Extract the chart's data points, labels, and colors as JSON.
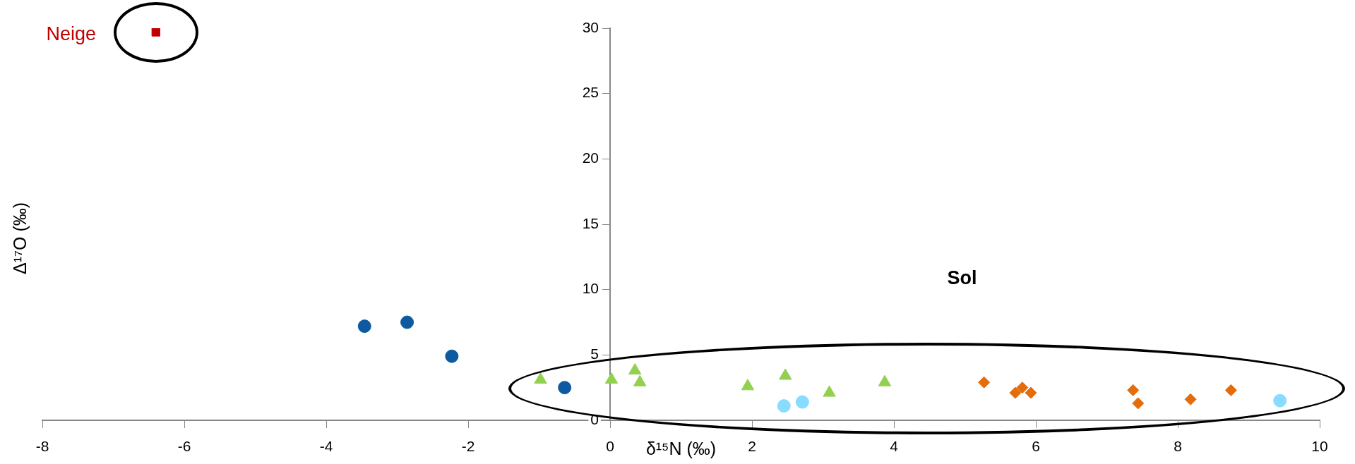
{
  "chart_data": {
    "type": "scatter",
    "xlabel": "δ¹⁵N (‰)",
    "ylabel": "Δ¹⁷O (‰)",
    "xlim": [
      -8,
      10
    ],
    "xticks": [
      -8,
      -6,
      -4,
      -2,
      0,
      2,
      4,
      6,
      8,
      10
    ],
    "ylim": [
      0,
      30
    ],
    "yticks": [
      0,
      5,
      10,
      15,
      20,
      25,
      30
    ],
    "annotations": [
      "Neige",
      "Sol"
    ],
    "series": [
      {
        "color": "#c00000",
        "marker": "square",
        "x": [
          -6.4
        ],
        "values": [
          29.7
        ]
      },
      {
        "color": "#0e5aa0",
        "marker": "circle",
        "x": [
          -3.46,
          -2.86,
          -2.23,
          -0.64
        ],
        "values": [
          7.2,
          7.5,
          4.9,
          2.5
        ]
      },
      {
        "color": "#92d050",
        "marker": "triangle",
        "x": [
          -0.98,
          0.02,
          0.35,
          2.47
        ],
        "values": [
          3.1,
          3.1,
          3.8,
          3.4
        ]
      },
      {
        "color": "#92d050",
        "marker": "triangle",
        "x": [
          0.42,
          1.94,
          3.09,
          3.87
        ],
        "values": [
          2.9,
          2.6,
          2.1,
          2.9
        ]
      },
      {
        "color": "#87dcff",
        "marker": "circle",
        "x": [
          2.45,
          2.71,
          9.44
        ],
        "values": [
          1.1,
          1.4,
          1.5
        ]
      },
      {
        "color": "#e46c0a",
        "marker": "diamond",
        "x": [
          5.27,
          5.71,
          5.81,
          5.93
        ],
        "values": [
          2.9,
          2.1,
          2.5,
          2.1
        ]
      },
      {
        "color": "#e46c0a",
        "marker": "diamond",
        "x": [
          7.37,
          7.44,
          8.18,
          8.75
        ],
        "values": [
          2.3,
          1.3,
          1.6,
          2.3
        ]
      }
    ]
  }
}
